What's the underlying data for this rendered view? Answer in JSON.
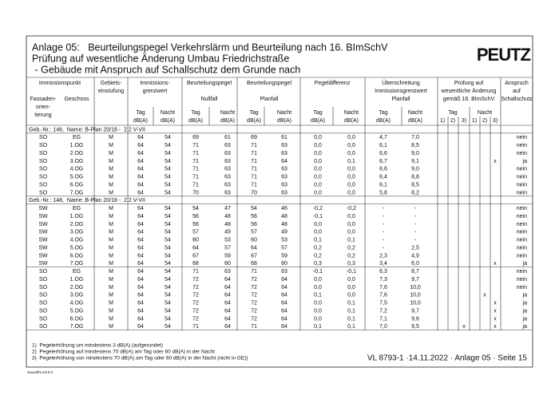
{
  "header": {
    "title_lines": [
      "Anlage 05:   Beurteilungspegel Verkehrslärm und Beurteilung nach 16. BImSchV",
      "Prüfung auf wesentliche Änderung Umbau Friedrichstraße",
      " - Gebäude mit Anspruch auf Schallschutz dem Grunde nach"
    ],
    "logo": "PEUTZ"
  },
  "table": {
    "header": [
      "Immissionspunkt",
      "Gebiets-",
      "einstufung",
      "Immissions-",
      "grenzwert",
      "Beurteilungspegel",
      "Nullfall",
      "Beurteilungspegel",
      "Planfall",
      "Pegeldifferenz",
      "Überschreitung",
      "Immissionsgrenzwert",
      "Planfall",
      "Prüfung auf",
      "wesentliche Änderung",
      "gemäß 16. BImSchV",
      "Anspruch",
      "auf",
      "Schallschutz",
      "Fassaden-",
      "orien-",
      "tierung",
      "Geschoss",
      "Tag",
      "dB(A)",
      "Nacht",
      "dB(A)",
      "Tag",
      "dB(A)",
      "Nacht",
      "dB(A)",
      "Tag",
      "dB(A)",
      "Nacht",
      "dB(A)",
      "Tag",
      "dB(A)",
      "Nacht",
      "dB(A)",
      "Tag",
      "dB(A)",
      "Nacht",
      "dB(A)",
      "Tag",
      "Nacht",
      "1)",
      "2)",
      "3)",
      "1)",
      "2)",
      "3)"
    ],
    "sections": [
      {
        "label": "Geb.-Nr.: 146,  Name: B-Plan 20/18 -  2.2 V-VII",
        "rows": [
          [
            "SO",
            "EG",
            "M",
            "64",
            "54",
            "69",
            "61",
            "69",
            "61",
            "0,0",
            "0,0",
            "4,7",
            "7,0",
            null,
            null,
            null,
            null,
            null,
            null,
            "nein"
          ],
          [
            "SO",
            "1.OG",
            "M",
            "64",
            "54",
            "71",
            "63",
            "71",
            "63",
            "0,0",
            "0,0",
            "6,1",
            "8,5",
            null,
            null,
            null,
            null,
            null,
            null,
            "nein"
          ],
          [
            "SO",
            "2.OG",
            "M",
            "64",
            "54",
            "71",
            "63",
            "71",
            "63",
            "0,0",
            "0,0",
            "6,6",
            "9,0",
            null,
            null,
            null,
            null,
            null,
            null,
            "nein"
          ],
          [
            "SO",
            "3.OG",
            "M",
            "64",
            "54",
            "71",
            "63",
            "71",
            "64",
            "0,0",
            "0,1",
            "6,7",
            "9,1",
            null,
            null,
            null,
            null,
            null,
            "x",
            "ja"
          ],
          [
            "SO",
            "4.OG",
            "M",
            "64",
            "54",
            "71",
            "63",
            "71",
            "63",
            "0,0",
            "0,0",
            "6,6",
            "9,0",
            null,
            null,
            null,
            null,
            null,
            null,
            "nein"
          ],
          [
            "SO",
            "5.OG",
            "M",
            "64",
            "54",
            "71",
            "63",
            "71",
            "63",
            "0,0",
            "0,0",
            "6,4",
            "8,8",
            null,
            null,
            null,
            null,
            null,
            null,
            "nein"
          ],
          [
            "SO",
            "6.OG",
            "M",
            "64",
            "54",
            "71",
            "63",
            "71",
            "63",
            "0,0",
            "0,0",
            "6,1",
            "8,5",
            null,
            null,
            null,
            null,
            null,
            null,
            "nein"
          ],
          [
            "SO",
            "7.OG",
            "M",
            "64",
            "54",
            "70",
            "63",
            "70",
            "63",
            "0,0",
            "0,0",
            "5,8",
            "8,2",
            null,
            null,
            null,
            null,
            null,
            null,
            "nein"
          ]
        ]
      },
      {
        "label": "Geb.-Nr.: 148,  Name: B-Plan 20/18 -  2.2 V-VII",
        "rows": [
          [
            "SW",
            "EG",
            "M",
            "64",
            "54",
            "54",
            "47",
            "54",
            "46",
            "-0,2",
            "-0,2",
            "-",
            "-",
            null,
            null,
            null,
            null,
            null,
            null,
            "nein"
          ],
          [
            "SW",
            "1.OG",
            "M",
            "64",
            "54",
            "56",
            "48",
            "56",
            "48",
            "-0,1",
            "0,0",
            "-",
            "-",
            null,
            null,
            null,
            null,
            null,
            null,
            "nein"
          ],
          [
            "SW",
            "2.OG",
            "M",
            "64",
            "54",
            "56",
            "48",
            "56",
            "48",
            "0,0",
            "0,0",
            "-",
            "-",
            null,
            null,
            null,
            null,
            null,
            null,
            "nein"
          ],
          [
            "SW",
            "3.OG",
            "M",
            "64",
            "54",
            "57",
            "49",
            "57",
            "49",
            "0,0",
            "0,0",
            "-",
            "-",
            null,
            null,
            null,
            null,
            null,
            null,
            "nein"
          ],
          [
            "SW",
            "4.OG",
            "M",
            "64",
            "54",
            "60",
            "53",
            "60",
            "53",
            "0,1",
            "0,1",
            "-",
            "-",
            null,
            null,
            null,
            null,
            null,
            null,
            "nein"
          ],
          [
            "SW",
            "5.OG",
            "M",
            "64",
            "54",
            "64",
            "57",
            "64",
            "57",
            "0,2",
            "0,2",
            "-",
            "2,5",
            null,
            null,
            null,
            null,
            null,
            null,
            "nein"
          ],
          [
            "SW",
            "6.OG",
            "M",
            "64",
            "54",
            "67",
            "59",
            "67",
            "59",
            "0,2",
            "0,2",
            "2,3",
            "4,9",
            null,
            null,
            null,
            null,
            null,
            null,
            "nein"
          ],
          [
            "SW",
            "7.OG",
            "M",
            "64",
            "54",
            "68",
            "60",
            "68",
            "60",
            "0,3",
            "0,3",
            "3,4",
            "6,0",
            null,
            null,
            null,
            null,
            null,
            "x",
            "ja"
          ]
        ]
      },
      {
        "rows": [
          [
            "SO",
            "EG",
            "M",
            "64",
            "54",
            "71",
            "63",
            "71",
            "63",
            "-0,1",
            "-0,1",
            "6,3",
            "8,7",
            null,
            null,
            null,
            null,
            null,
            null,
            "nein"
          ],
          [
            "SO",
            "1.OG",
            "M",
            "64",
            "54",
            "72",
            "64",
            "72",
            "64",
            "0,0",
            "0,0",
            "7,3",
            "9,7",
            null,
            null,
            null,
            null,
            null,
            null,
            "nein"
          ],
          [
            "SO",
            "2.OG",
            "M",
            "64",
            "54",
            "72",
            "64",
            "72",
            "64",
            "0,0",
            "0,0",
            "7,6",
            "10,0",
            null,
            null,
            null,
            null,
            null,
            null,
            "nein"
          ],
          [
            "SO",
            "3.OG",
            "M",
            "64",
            "54",
            "72",
            "64",
            "72",
            "64",
            "0,1",
            "0,0",
            "7,6",
            "10,0",
            null,
            null,
            null,
            null,
            "x",
            null,
            "ja"
          ],
          [
            "SO",
            "4.OG",
            "M",
            "64",
            "54",
            "72",
            "64",
            "72",
            "64",
            "0,0",
            "0,1",
            "7,5",
            "10,0",
            null,
            null,
            null,
            null,
            null,
            "x",
            "ja"
          ],
          [
            "SO",
            "5.OG",
            "M",
            "64",
            "54",
            "72",
            "64",
            "72",
            "64",
            "0,0",
            "0,1",
            "7,2",
            "9,7",
            null,
            null,
            null,
            null,
            null,
            "x",
            "ja"
          ],
          [
            "SO",
            "6.OG",
            "M",
            "64",
            "54",
            "72",
            "64",
            "72",
            "64",
            "0,0",
            "0,1",
            "7,1",
            "9,6",
            null,
            null,
            null,
            null,
            null,
            "x",
            "ja"
          ],
          [
            "SO",
            "7.OG",
            "M",
            "64",
            "54",
            "71",
            "64",
            "71",
            "64",
            "0,1",
            "0,1",
            "7,0",
            "9,5",
            null,
            null,
            "x",
            null,
            null,
            "x",
            "ja"
          ]
        ]
      }
    ]
  },
  "footnotes": [
    "1)  Pegelerhöhung um mindestens 3 dB(A) (aufgerundet)",
    "2)  Pegelerhöhung auf mindestens 70 dB(A) am Tag oder 60 dB(A) in der Nacht",
    "3)  Pegelerhöhung von mindestens 70 dB(A) am Tag oder 60 dB(A) in der Nacht (nicht in GE))"
  ],
  "footer": {
    "reference": "VL 8793-1 ·14.11.2022 · Anlage 05 · Seite 15",
    "software": "SoundPLAN 8.2"
  }
}
